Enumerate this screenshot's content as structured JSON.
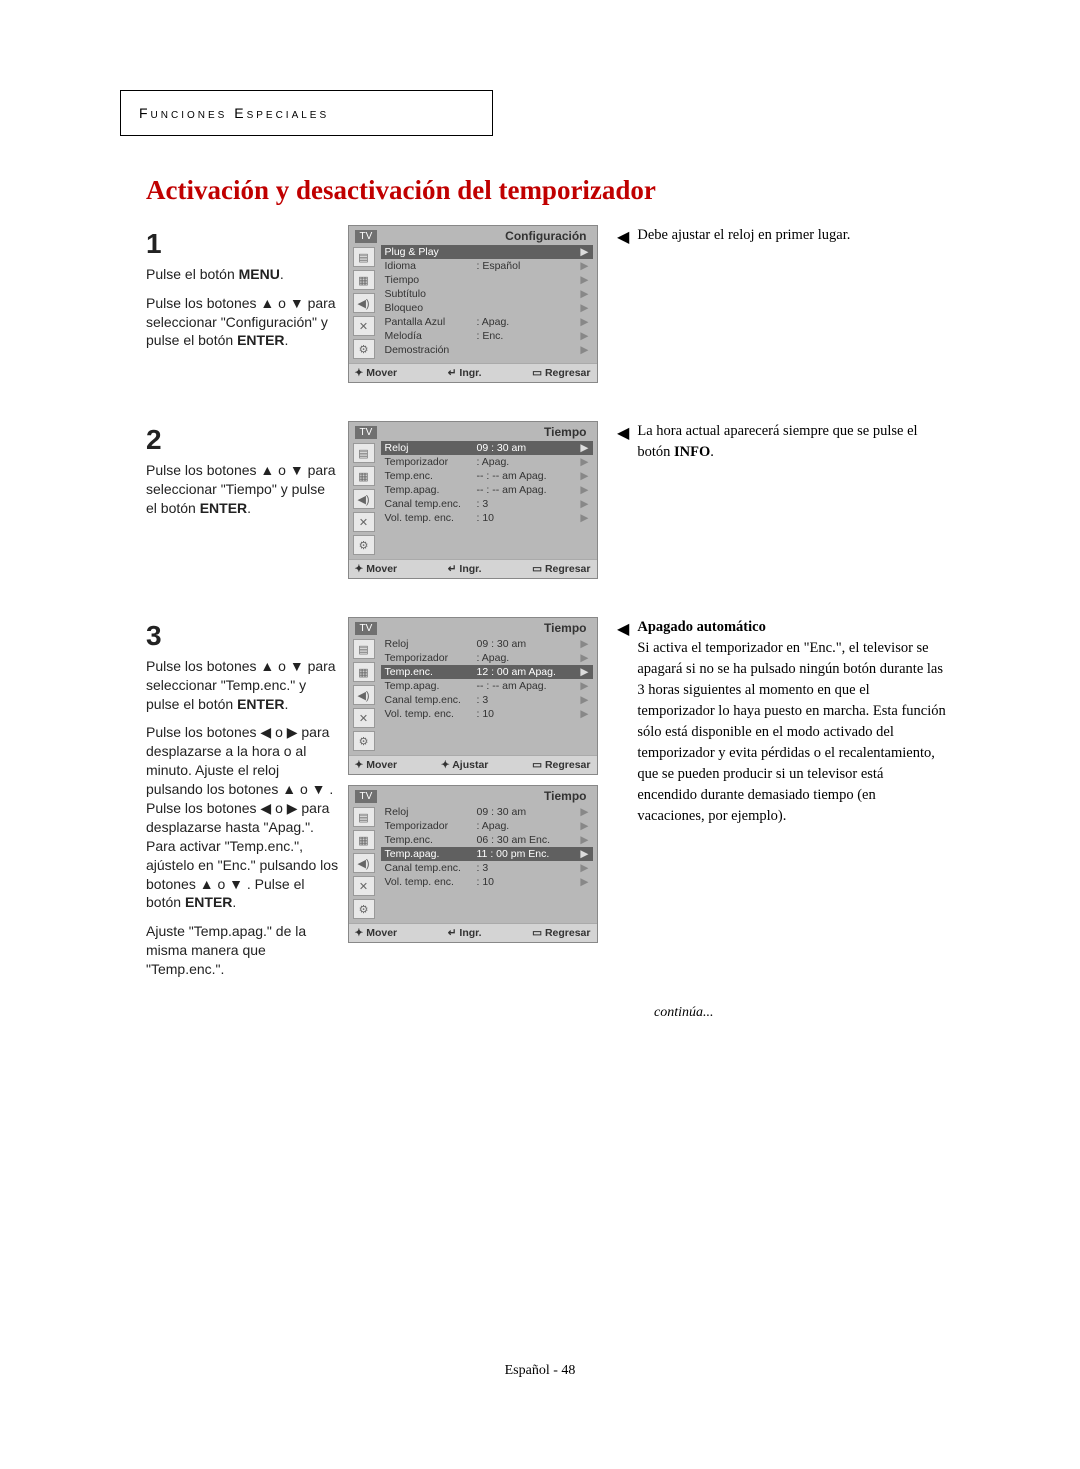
{
  "header_label": "Funciones Especiales",
  "main_title": "Activación y desactivación del temporizador",
  "footer": "Español - 48",
  "continua": "continúa...",
  "steps": {
    "s1": {
      "num": "1",
      "p1a": "Pulse el botón ",
      "p1b": "MENU",
      "p1c": ".",
      "p2a": "Pulse los botones ▲ o ▼ para seleccionar \"Configuración\" y pulse el botón ",
      "p2b": "ENTER",
      "p2c": "."
    },
    "s2": {
      "num": "2",
      "p1a": "Pulse los botones ▲ o ▼ para seleccionar \"Tiempo\" y pulse el botón ",
      "p1b": "ENTER",
      "p1c": "."
    },
    "s3": {
      "num": "3",
      "p1a": "Pulse los botones ▲ o ▼ para seleccionar \"Temp.enc.\" y pulse el botón ",
      "p1b": "ENTER",
      "p1c": ".",
      "p2": "Pulse los botones ◀ o ▶ para desplazarse a la hora o al minuto. Ajuste el reloj pulsando los botones ▲ o ▼ .",
      "p3a": "Pulse los botones ◀ o ▶ para desplazarse hasta \"Apag.\". Para activar \"Temp.enc.\", ajústelo en \"Enc.\" pulsando los botones ▲ o ▼ .",
      "p3b": " Pulse el botón ",
      "p3c": "ENTER",
      "p3d": ".",
      "p4": "Ajuste \"Temp.apag.\" de la misma manera que \"Temp.enc.\"."
    }
  },
  "notes": {
    "n1": "Debe ajustar el reloj en primer lugar.",
    "n2a": "La hora actual aparecerá siempre que se pulse el botón ",
    "n2b": "INFO",
    "n2c": ".",
    "n3_title": "Apagado automático",
    "n3_body": "Si activa el temporizador en \"Enc.\", el televisor se apagará si no se ha pulsado ningún botón durante las 3 horas siguientes al momento en que el temporizador lo haya puesto en marcha. Esta función sólo está disponible en el modo activado del temporizador y evita pérdidas o el recalentamiento, que se pueden producir si un televisor está encendido durante demasiado tiempo (en vacaciones, por ejemplo)."
  },
  "osd": {
    "tv": "TV",
    "foot_mover": "✦ Mover",
    "foot_mover_ud": "✦ Mover",
    "foot_ajustar": "✦ Ajustar",
    "foot_ingr": "↵ Ingr.",
    "foot_regresar": "▭ Regresar",
    "config": {
      "title": "Configuración",
      "items": [
        {
          "l": "Plug & Play",
          "v": "",
          "hl": true
        },
        {
          "l": "Idioma",
          "v": ": Español"
        },
        {
          "l": "Tiempo",
          "v": ""
        },
        {
          "l": "Subtítulo",
          "v": ""
        },
        {
          "l": "Bloqueo",
          "v": ""
        },
        {
          "l": "Pantalla Azul",
          "v": ": Apag."
        },
        {
          "l": "Melodía",
          "v": ": Enc."
        },
        {
          "l": "Demostración",
          "v": ""
        }
      ]
    },
    "tiempo1": {
      "title": "Tiempo",
      "items": [
        {
          "l": "Reloj",
          "v": "09 : 30 am",
          "hl": true
        },
        {
          "l": "Temporizador",
          "v": ": Apag."
        },
        {
          "l": "Temp.enc.",
          "v": "-- : -- am  Apag."
        },
        {
          "l": "Temp.apag.",
          "v": "-- : -- am  Apag."
        },
        {
          "l": "Canal temp.enc.",
          "v": ":        3"
        },
        {
          "l": "Vol. temp. enc.",
          "v": ":       10"
        }
      ]
    },
    "tiempo2": {
      "title": "Tiempo",
      "items": [
        {
          "l": "Reloj",
          "v": "09 : 30 am"
        },
        {
          "l": "Temporizador",
          "v": ": Apag."
        },
        {
          "l": "Temp.enc.",
          "v": "12 : 00 am  Apag.",
          "hl": true
        },
        {
          "l": "Temp.apag.",
          "v": "-- : -- am  Apag."
        },
        {
          "l": "Canal temp.enc.",
          "v": ":        3"
        },
        {
          "l": "Vol. temp. enc.",
          "v": ":       10"
        }
      ]
    },
    "tiempo3": {
      "title": "Tiempo",
      "items": [
        {
          "l": "Reloj",
          "v": "09 : 30 am"
        },
        {
          "l": "Temporizador",
          "v": ": Apag."
        },
        {
          "l": "Temp.enc.",
          "v": "06 : 30 am  Enc."
        },
        {
          "l": "Temp.apag.",
          "v": "11 : 00 pm  Enc.",
          "hl": true
        },
        {
          "l": "Canal temp.enc.",
          "v": ":        3"
        },
        {
          "l": "Vol. temp. enc.",
          "v": ":       10"
        }
      ]
    }
  },
  "icons": [
    "▤",
    "▦",
    "◀)",
    "✕",
    "⚙"
  ]
}
